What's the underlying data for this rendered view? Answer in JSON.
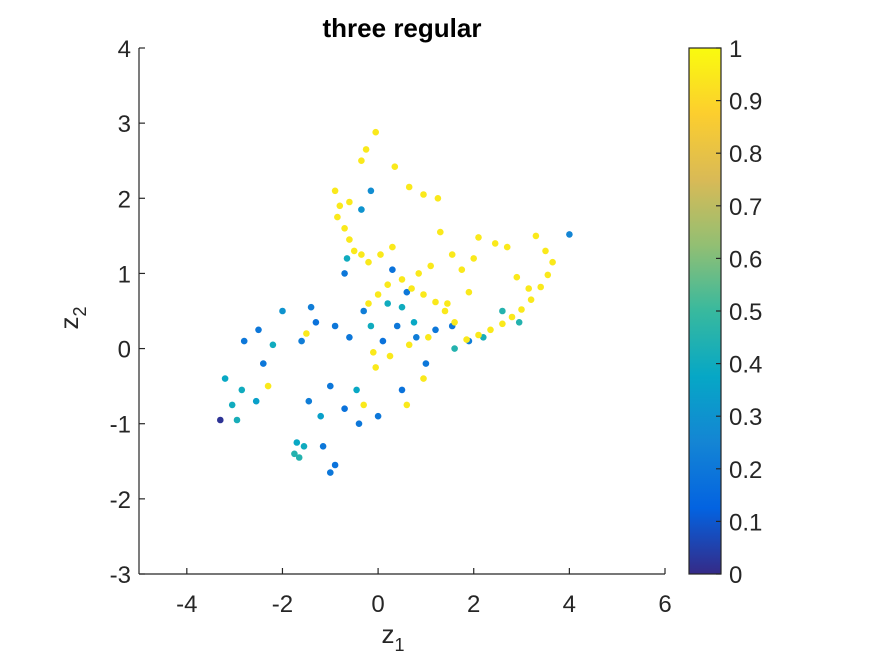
{
  "chart_data": {
    "type": "scatter",
    "title": "three regular",
    "xlabel": {
      "base": "z",
      "sub": "1"
    },
    "ylabel": {
      "base": "z",
      "sub": "2"
    },
    "xlim": [
      -5,
      6
    ],
    "ylim": [
      -3,
      4
    ],
    "xticks": [
      -4,
      -2,
      0,
      2,
      4,
      6
    ],
    "yticks": [
      -3,
      -2,
      -1,
      0,
      1,
      2,
      3,
      4
    ],
    "xtick_labels": [
      "-4",
      "-2",
      "0",
      "2",
      "4",
      "6"
    ],
    "ytick_labels": [
      "-3",
      "-2",
      "-1",
      "0",
      "1",
      "2",
      "3",
      "4"
    ],
    "grid": false,
    "box": false,
    "colormap": "parula",
    "colorbar": {
      "range": [
        0,
        1
      ],
      "ticks": [
        0,
        0.1,
        0.2,
        0.3,
        0.4,
        0.5,
        0.6,
        0.7,
        0.8,
        0.9,
        1
      ],
      "tick_labels": [
        "0",
        "0.1",
        "0.2",
        "0.3",
        "0.4",
        "0.5",
        "0.6",
        "0.7",
        "0.8",
        "0.9",
        "1"
      ],
      "location": "right"
    },
    "parula_stops": [
      "#352a87",
      "#0363e1",
      "#1485d4",
      "#06a7c6",
      "#38b99e",
      "#92bf73",
      "#d9ba56",
      "#fcce2e",
      "#f9fb0e"
    ],
    "points": [
      [
        -3.3,
        -0.95,
        0.02
      ],
      [
        4.0,
        1.52,
        0.25
      ],
      [
        0.35,
        2.42,
        0.95
      ],
      [
        -0.05,
        2.88,
        0.95
      ],
      [
        -0.25,
        2.65,
        0.95
      ],
      [
        -0.35,
        2.5,
        0.95
      ],
      [
        0.65,
        2.15,
        0.95
      ],
      [
        0.95,
        2.05,
        0.95
      ],
      [
        1.25,
        2.0,
        0.95
      ],
      [
        -0.6,
        1.95,
        0.95
      ],
      [
        -0.8,
        1.9,
        0.95
      ],
      [
        -0.9,
        2.1,
        0.95
      ],
      [
        -0.85,
        1.75,
        0.95
      ],
      [
        -0.7,
        1.6,
        0.95
      ],
      [
        -0.6,
        1.45,
        0.95
      ],
      [
        -0.5,
        1.3,
        0.95
      ],
      [
        -0.35,
        1.25,
        0.95
      ],
      [
        -0.2,
        1.15,
        0.95
      ],
      [
        0.05,
        1.25,
        0.95
      ],
      [
        0.3,
        1.35,
        0.95
      ],
      [
        1.3,
        1.55,
        0.95
      ],
      [
        2.1,
        1.48,
        0.95
      ],
      [
        2.45,
        1.4,
        0.95
      ],
      [
        2.7,
        1.35,
        0.95
      ],
      [
        3.3,
        1.5,
        0.95
      ],
      [
        3.5,
        1.3,
        0.95
      ],
      [
        3.65,
        1.15,
        0.95
      ],
      [
        3.55,
        0.98,
        0.95
      ],
      [
        3.4,
        0.82,
        0.95
      ],
      [
        3.2,
        0.65,
        0.95
      ],
      [
        3.0,
        0.52,
        0.95
      ],
      [
        2.8,
        0.42,
        0.95
      ],
      [
        2.6,
        0.33,
        0.95
      ],
      [
        2.35,
        0.25,
        0.95
      ],
      [
        2.1,
        0.18,
        0.95
      ],
      [
        1.85,
        0.12,
        0.95
      ],
      [
        1.6,
        0.35,
        0.95
      ],
      [
        1.4,
        0.5,
        0.95
      ],
      [
        1.2,
        0.62,
        0.95
      ],
      [
        0.95,
        0.72,
        0.95
      ],
      [
        0.7,
        0.8,
        0.95
      ],
      [
        0.5,
        0.92,
        0.95
      ],
      [
        0.2,
        0.85,
        0.95
      ],
      [
        0.0,
        0.72,
        0.95
      ],
      [
        -0.2,
        0.6,
        0.95
      ],
      [
        -0.1,
        -0.05,
        0.95
      ],
      [
        0.25,
        -0.1,
        0.95
      ],
      [
        0.65,
        0.05,
        0.95
      ],
      [
        1.05,
        0.15,
        0.95
      ],
      [
        1.45,
        0.6,
        0.95
      ],
      [
        1.75,
        1.05,
        0.95
      ],
      [
        2.0,
        1.2,
        0.95
      ],
      [
        1.55,
        1.25,
        0.95
      ],
      [
        1.1,
        1.1,
        0.95
      ],
      [
        0.85,
        1.0,
        0.95
      ],
      [
        2.9,
        0.95,
        0.95
      ],
      [
        3.15,
        0.8,
        0.95
      ],
      [
        -1.5,
        0.2,
        0.95
      ],
      [
        -0.3,
        -0.75,
        0.95
      ],
      [
        0.95,
        -0.4,
        0.95
      ],
      [
        0.6,
        -0.75,
        0.95
      ],
      [
        -2.3,
        -0.5,
        0.95
      ],
      [
        -0.05,
        -0.25,
        0.95
      ],
      [
        1.9,
        0.75,
        0.95
      ],
      [
        -1.65,
        -1.45,
        0.45
      ],
      [
        -1.75,
        -1.4,
        0.45
      ],
      [
        -1.55,
        -1.3,
        0.4
      ],
      [
        -1.7,
        -1.25,
        0.38
      ],
      [
        -2.95,
        -0.95,
        0.42
      ],
      [
        -3.05,
        -0.75,
        0.4
      ],
      [
        -3.2,
        -0.4,
        0.38
      ],
      [
        -2.85,
        -0.55,
        0.4
      ],
      [
        -2.55,
        -0.7,
        0.35
      ],
      [
        -2.2,
        0.05,
        0.4
      ],
      [
        -0.15,
        0.3,
        0.4
      ],
      [
        0.5,
        0.55,
        0.4
      ],
      [
        1.6,
        0.0,
        0.45
      ],
      [
        2.2,
        0.15,
        0.42
      ],
      [
        2.6,
        0.5,
        0.45
      ],
      [
        -0.65,
        1.2,
        0.4
      ],
      [
        -0.35,
        1.85,
        0.3
      ],
      [
        -0.15,
        2.1,
        0.28
      ],
      [
        0.2,
        0.6,
        0.4
      ],
      [
        0.75,
        0.35,
        0.38
      ],
      [
        -1.2,
        -0.9,
        0.35
      ],
      [
        -0.45,
        -0.55,
        0.38
      ],
      [
        2.95,
        0.35,
        0.45
      ],
      [
        -2.0,
        0.5,
        0.3
      ],
      [
        -2.5,
        0.25,
        0.2
      ],
      [
        -1.6,
        0.1,
        0.22
      ],
      [
        -1.3,
        0.35,
        0.18
      ],
      [
        -0.9,
        0.3,
        0.2
      ],
      [
        -0.6,
        0.15,
        0.2
      ],
      [
        -0.3,
        0.5,
        0.22
      ],
      [
        0.1,
        0.1,
        0.18
      ],
      [
        0.4,
        0.3,
        0.2
      ],
      [
        0.8,
        0.15,
        0.22
      ],
      [
        1.2,
        0.25,
        0.2
      ],
      [
        1.55,
        0.3,
        0.2
      ],
      [
        1.9,
        0.1,
        0.22
      ],
      [
        -1.0,
        -0.5,
        0.2
      ],
      [
        -0.7,
        -0.8,
        0.18
      ],
      [
        -0.4,
        -1.0,
        0.2
      ],
      [
        0.0,
        -0.9,
        0.2
      ],
      [
        -1.45,
        -0.7,
        0.22
      ],
      [
        -1.15,
        -1.3,
        0.2
      ],
      [
        -0.9,
        -1.55,
        0.18
      ],
      [
        -1.0,
        -1.65,
        0.2
      ],
      [
        -2.8,
        0.1,
        0.2
      ],
      [
        -2.4,
        -0.2,
        0.2
      ],
      [
        0.5,
        -0.55,
        0.18
      ],
      [
        1.0,
        -0.2,
        0.2
      ],
      [
        0.6,
        0.75,
        0.2
      ],
      [
        0.3,
        1.05,
        0.18
      ],
      [
        -0.7,
        1.0,
        0.2
      ],
      [
        -1.4,
        0.55,
        0.22
      ]
    ]
  }
}
